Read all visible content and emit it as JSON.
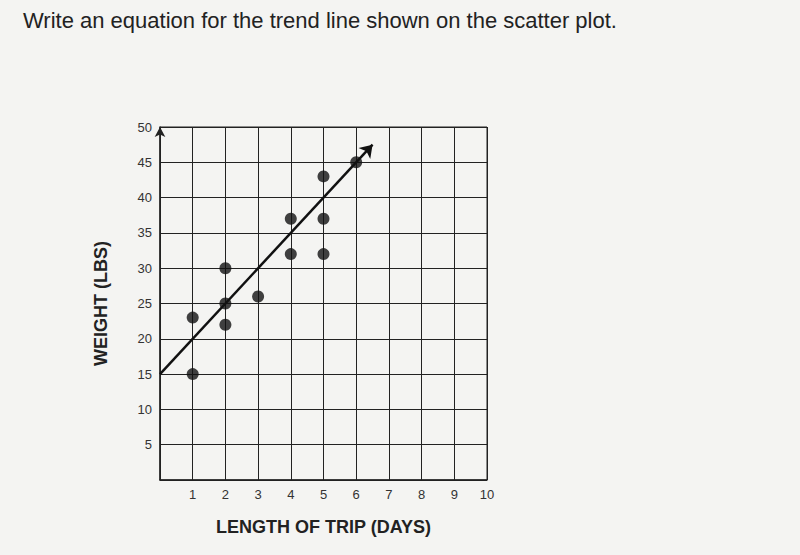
{
  "chart_data": {
    "type": "scatter",
    "title": "Write an equation for the trend line shown on the scatter plot.",
    "x_label": "LENGTH OF TRIP (DAYS)",
    "y_label": "WEIGHT (LBS)",
    "x": [
      1,
      1,
      2,
      2,
      2,
      3,
      4,
      4,
      5,
      5,
      5,
      6
    ],
    "values": [
      23,
      15,
      30,
      25,
      22,
      26,
      37,
      32,
      43,
      37,
      32,
      45
    ],
    "color": "#111111",
    "marker": "circle",
    "xlim": [
      0,
      10
    ],
    "xticks": [
      1,
      2,
      3,
      4,
      5,
      6,
      7,
      8,
      9,
      10
    ],
    "ylim": [
      0,
      50
    ],
    "yticks": [
      5,
      10,
      15,
      20,
      25,
      30,
      35,
      40,
      45,
      50
    ],
    "grid": true,
    "trend_line": {
      "x": [
        0,
        6.5
      ],
      "y": [
        15,
        47.5
      ]
    }
  }
}
